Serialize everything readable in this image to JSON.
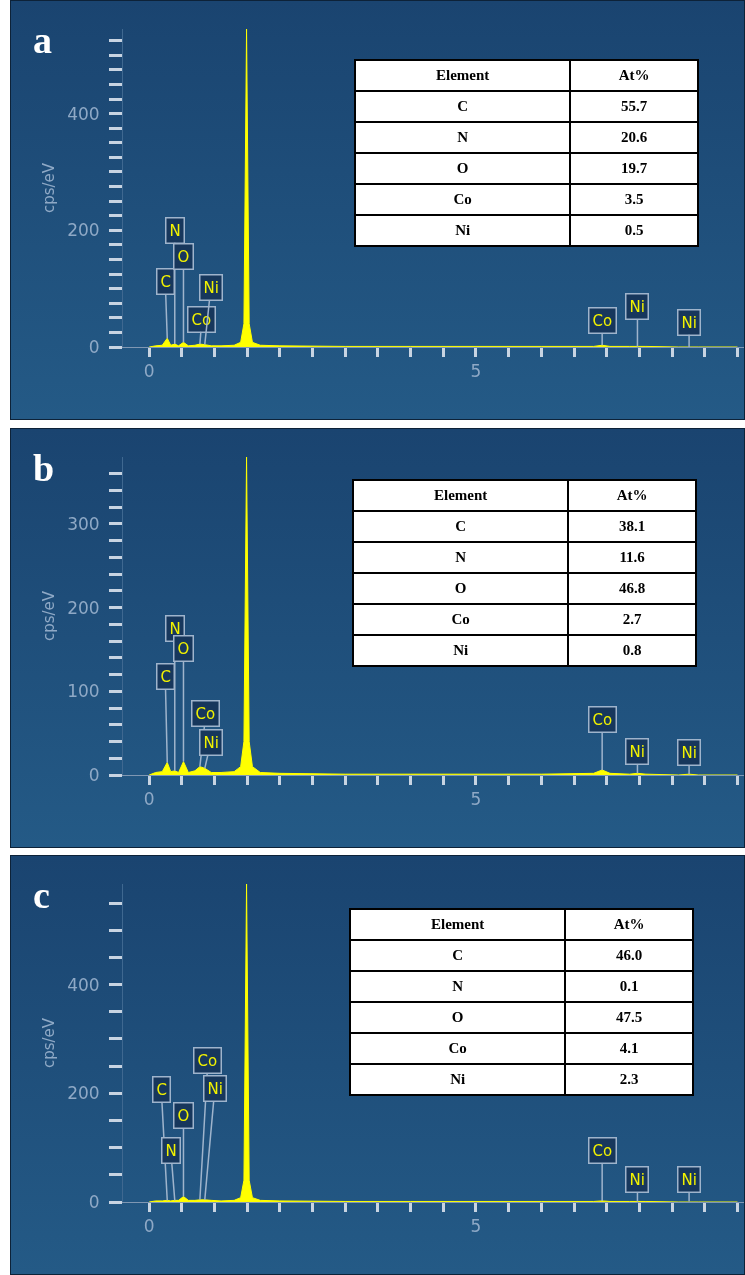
{
  "chart_data": [
    {
      "type": "area",
      "title": "a",
      "ylabel": "cps/eV",
      "x": [
        0,
        0.1,
        0.2,
        0.277,
        0.33,
        0.392,
        0.45,
        0.525,
        0.6,
        0.7,
        0.776,
        0.851,
        0.95,
        1.1,
        1.3,
        1.4,
        1.45,
        1.49,
        1.53,
        1.58,
        1.7,
        2,
        3,
        4,
        5,
        6,
        6.8,
        6.93,
        7.05,
        7.35,
        7.47,
        7.6,
        8.1,
        8.26,
        8.4,
        9
      ],
      "series": [
        {
          "color": "#ffff00",
          "values": [
            0,
            2,
            3,
            15,
            3,
            5,
            2,
            8,
            2,
            3,
            5,
            4,
            2,
            2,
            3,
            8,
            40,
            545,
            40,
            8,
            3,
            2,
            1,
            1,
            1,
            1,
            1,
            3,
            1,
            1,
            1,
            1,
            0,
            0,
            0,
            0
          ]
        }
      ],
      "xlim": [
        -0.4,
        9.1
      ],
      "ylim": [
        0,
        545
      ],
      "xticks": [
        {
          "value": 0,
          "label": "0"
        },
        {
          "value": 0.5,
          "label": null
        },
        {
          "value": 1,
          "label": null
        },
        {
          "value": 1.5,
          "label": null
        },
        {
          "value": 2,
          "label": null
        },
        {
          "value": 2.5,
          "label": null
        },
        {
          "value": 3,
          "label": null
        },
        {
          "value": 3.5,
          "label": null
        },
        {
          "value": 4,
          "label": null
        },
        {
          "value": 4.5,
          "label": null
        },
        {
          "value": 5,
          "label": "5"
        },
        {
          "value": 5.5,
          "label": null
        },
        {
          "value": 6,
          "label": null
        },
        {
          "value": 6.5,
          "label": null
        },
        {
          "value": 7,
          "label": null
        },
        {
          "value": 7.5,
          "label": null
        },
        {
          "value": 8,
          "label": null
        },
        {
          "value": 8.5,
          "label": null
        },
        {
          "value": 9,
          "label": null
        }
      ],
      "yticks": [
        0,
        {
          "value": 25,
          "label": null
        },
        {
          "value": 50,
          "label": null
        },
        {
          "value": 75,
          "label": null
        },
        {
          "value": 100,
          "label": null
        },
        {
          "value": 125,
          "label": null
        },
        {
          "value": 150,
          "label": null
        },
        {
          "value": 175,
          "label": null
        },
        200,
        {
          "value": 225,
          "label": null
        },
        {
          "value": 250,
          "label": null
        },
        {
          "value": 275,
          "label": null
        },
        {
          "value": 300,
          "label": null
        },
        {
          "value": 325,
          "label": null
        },
        {
          "value": 350,
          "label": null
        },
        {
          "value": 375,
          "label": null
        },
        400,
        {
          "value": 425,
          "label": null
        },
        {
          "value": 450,
          "label": null
        },
        {
          "value": 475,
          "label": null
        },
        {
          "value": 500,
          "label": null
        },
        {
          "value": 525,
          "label": null
        }
      ],
      "annotations": [
        {
          "text": "C",
          "x": 0.277,
          "y": 15
        },
        {
          "text": "N",
          "x": 0.392,
          "y": 5
        },
        {
          "text": "O",
          "x": 0.525,
          "y": 8
        },
        {
          "text": "Co",
          "x": 0.776,
          "y": 5
        },
        {
          "text": "Ni",
          "x": 0.851,
          "y": 4
        },
        {
          "text": "Co",
          "x": 6.93,
          "y": 3
        },
        {
          "text": "Ni",
          "x": 7.47,
          "y": 1
        },
        {
          "text": "Ni",
          "x": 8.26,
          "y": 0
        }
      ],
      "grid": false,
      "marker": "none"
    },
    {
      "type": "other",
      "xlabel": "Element",
      "ylabel": "At%",
      "categories": [
        "C",
        "N",
        "O",
        "Co",
        "Ni"
      ],
      "values": [
        55.7,
        20.6,
        19.7,
        3.5,
        0.5
      ],
      "data_labels": true
    },
    {
      "type": "area",
      "title": "b",
      "ylabel": "cps/eV",
      "x": [
        0,
        0.1,
        0.2,
        0.277,
        0.33,
        0.392,
        0.45,
        0.525,
        0.6,
        0.7,
        0.776,
        0.851,
        0.95,
        1.1,
        1.3,
        1.4,
        1.45,
        1.49,
        1.53,
        1.58,
        1.7,
        2,
        3,
        4,
        5,
        6,
        6.8,
        6.93,
        7.05,
        7.35,
        7.47,
        7.6,
        8.1,
        8.26,
        8.4,
        9
      ],
      "series": [
        {
          "color": "#ffff00",
          "values": [
            0,
            3,
            4,
            15,
            4,
            5,
            3,
            16,
            3,
            5,
            10,
            8,
            3,
            3,
            4,
            10,
            40,
            380,
            40,
            10,
            3,
            2,
            1,
            1,
            1,
            1,
            2,
            6,
            2,
            1,
            2,
            1,
            0,
            1,
            0,
            0
          ]
        }
      ],
      "xlim": [
        -0.4,
        9.1
      ],
      "ylim": [
        0,
        380
      ],
      "xticks": [
        {
          "value": 0,
          "label": "0"
        },
        {
          "value": 0.5,
          "label": null
        },
        {
          "value": 1,
          "label": null
        },
        {
          "value": 1.5,
          "label": null
        },
        {
          "value": 2,
          "label": null
        },
        {
          "value": 2.5,
          "label": null
        },
        {
          "value": 3,
          "label": null
        },
        {
          "value": 3.5,
          "label": null
        },
        {
          "value": 4,
          "label": null
        },
        {
          "value": 4.5,
          "label": null
        },
        {
          "value": 5,
          "label": "5"
        },
        {
          "value": 5.5,
          "label": null
        },
        {
          "value": 6,
          "label": null
        },
        {
          "value": 6.5,
          "label": null
        },
        {
          "value": 7,
          "label": null
        },
        {
          "value": 7.5,
          "label": null
        },
        {
          "value": 8,
          "label": null
        },
        {
          "value": 8.5,
          "label": null
        },
        {
          "value": 9,
          "label": null
        }
      ],
      "yticks": [
        0,
        {
          "value": 20,
          "label": null
        },
        {
          "value": 40,
          "label": null
        },
        {
          "value": 60,
          "label": null
        },
        {
          "value": 80,
          "label": null
        },
        100,
        {
          "value": 120,
          "label": null
        },
        {
          "value": 140,
          "label": null
        },
        {
          "value": 160,
          "label": null
        },
        {
          "value": 180,
          "label": null
        },
        200,
        {
          "value": 220,
          "label": null
        },
        {
          "value": 240,
          "label": null
        },
        {
          "value": 260,
          "label": null
        },
        {
          "value": 280,
          "label": null
        },
        300,
        {
          "value": 320,
          "label": null
        },
        {
          "value": 340,
          "label": null
        },
        {
          "value": 360,
          "label": null
        }
      ],
      "annotations": [
        {
          "text": "C",
          "x": 0.277,
          "y": 15
        },
        {
          "text": "N",
          "x": 0.392,
          "y": 5
        },
        {
          "text": "O",
          "x": 0.525,
          "y": 16
        },
        {
          "text": "Co",
          "x": 0.776,
          "y": 10
        },
        {
          "text": "Ni",
          "x": 0.851,
          "y": 8
        },
        {
          "text": "Co",
          "x": 6.93,
          "y": 6
        },
        {
          "text": "Ni",
          "x": 7.47,
          "y": 2
        },
        {
          "text": "Ni",
          "x": 8.26,
          "y": 1
        }
      ],
      "grid": false,
      "marker": "none"
    },
    {
      "type": "other",
      "xlabel": "Element",
      "ylabel": "At%",
      "categories": [
        "C",
        "N",
        "O",
        "Co",
        "Ni"
      ],
      "values": [
        38.1,
        11.6,
        46.8,
        2.7,
        0.8
      ],
      "data_labels": true
    },
    {
      "type": "area",
      "title": "c",
      "ylabel": "cps/eV",
      "x": [
        0,
        0.1,
        0.2,
        0.277,
        0.33,
        0.392,
        0.45,
        0.525,
        0.6,
        0.7,
        0.776,
        0.851,
        0.95,
        1.1,
        1.3,
        1.4,
        1.45,
        1.49,
        1.53,
        1.58,
        1.7,
        2,
        3,
        4,
        5,
        6,
        6.8,
        6.93,
        7.05,
        7.35,
        7.47,
        7.6,
        8.1,
        8.26,
        8.4,
        9
      ],
      "series": [
        {
          "color": "#ffff00",
          "values": [
            0,
            2,
            2,
            3,
            2,
            3,
            3,
            10,
            3,
            3,
            4,
            4,
            3,
            2,
            3,
            8,
            40,
            585,
            40,
            8,
            3,
            2,
            1,
            1,
            1,
            1,
            1,
            2,
            1,
            1,
            1,
            1,
            0,
            0,
            0,
            0
          ]
        }
      ],
      "xlim": [
        -0.4,
        9.1
      ],
      "ylim": [
        0,
        585
      ],
      "xticks": [
        {
          "value": 0,
          "label": "0"
        },
        {
          "value": 0.5,
          "label": null
        },
        {
          "value": 1,
          "label": null
        },
        {
          "value": 1.5,
          "label": null
        },
        {
          "value": 2,
          "label": null
        },
        {
          "value": 2.5,
          "label": null
        },
        {
          "value": 3,
          "label": null
        },
        {
          "value": 3.5,
          "label": null
        },
        {
          "value": 4,
          "label": null
        },
        {
          "value": 4.5,
          "label": null
        },
        {
          "value": 5,
          "label": "5"
        },
        {
          "value": 5.5,
          "label": null
        },
        {
          "value": 6,
          "label": null
        },
        {
          "value": 6.5,
          "label": null
        },
        {
          "value": 7,
          "label": null
        },
        {
          "value": 7.5,
          "label": null
        },
        {
          "value": 8,
          "label": null
        },
        {
          "value": 8.5,
          "label": null
        },
        {
          "value": 9,
          "label": null
        }
      ],
      "yticks": [
        0,
        {
          "value": 50,
          "label": null
        },
        {
          "value": 100,
          "label": null
        },
        {
          "value": 150,
          "label": null
        },
        200,
        {
          "value": 250,
          "label": null
        },
        {
          "value": 300,
          "label": null
        },
        {
          "value": 350,
          "label": null
        },
        400,
        {
          "value": 450,
          "label": null
        },
        {
          "value": 500,
          "label": null
        },
        {
          "value": 550,
          "label": null
        }
      ],
      "annotations": [
        {
          "text": "C",
          "x": 0.277,
          "y": 3
        },
        {
          "text": "N",
          "x": 0.392,
          "y": 3
        },
        {
          "text": "O",
          "x": 0.525,
          "y": 10
        },
        {
          "text": "Co",
          "x": 0.776,
          "y": 4
        },
        {
          "text": "Ni",
          "x": 0.851,
          "y": 4
        },
        {
          "text": "Co",
          "x": 6.93,
          "y": 2
        },
        {
          "text": "Ni",
          "x": 7.47,
          "y": 1
        },
        {
          "text": "Ni",
          "x": 8.26,
          "y": 1
        }
      ],
      "grid": false,
      "marker": "none"
    },
    {
      "type": "other",
      "xlabel": "Element",
      "ylabel": "At%",
      "categories": [
        "C",
        "N",
        "O",
        "Co",
        "Ni"
      ],
      "values": [
        46.0,
        0.1,
        47.5,
        4.1,
        2.3
      ],
      "value_labels": [
        "46.0",
        "0.1",
        "47.5",
        "4.1",
        "2.3"
      ],
      "data_labels": true
    }
  ]
}
